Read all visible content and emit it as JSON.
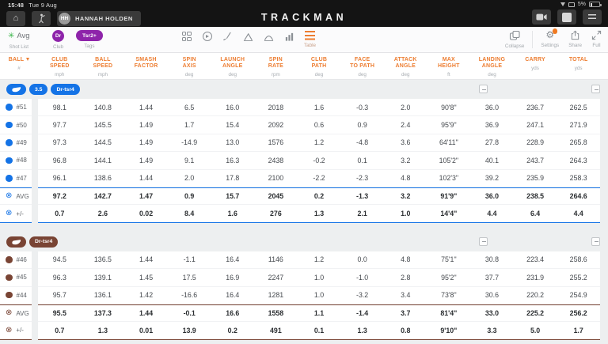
{
  "status_bar": {
    "time": "15:48",
    "date": "Tue 9 Aug",
    "battery_percent": "5%"
  },
  "app_bar": {
    "logo": "TRACKMAN",
    "user_initials": "HH",
    "user_name": "HANNAH HOLDEN"
  },
  "toolbar": {
    "shot_list_label": "Avg",
    "shot_list_caption": "Shot List",
    "club_value": "Dr",
    "club_caption": "Club",
    "tag_value": "Tsr2+",
    "tags_caption": "Tags",
    "table_caption": "Table",
    "collapse_caption": "Collapse",
    "settings_caption": "Settings",
    "share_caption": "Share",
    "full_caption": "Full"
  },
  "colors": {
    "header_accent": "#ED7D31",
    "group1": "#1473E6",
    "group2": "#794434",
    "tag_purple": "#8E24AA",
    "avg_green": "#3AB54A"
  },
  "table": {
    "ball_column": {
      "label": "BALL",
      "unit": "#"
    },
    "columns": [
      {
        "lines": [
          "CLUB",
          "SPEED"
        ],
        "unit": "mph"
      },
      {
        "lines": [
          "BALL",
          "SPEED"
        ],
        "unit": "mph"
      },
      {
        "lines": [
          "SMASH",
          "FACTOR"
        ],
        "unit": ""
      },
      {
        "lines": [
          "SPIN",
          "AXIS"
        ],
        "unit": "deg"
      },
      {
        "lines": [
          "LAUNCH",
          "ANGLE"
        ],
        "unit": "deg"
      },
      {
        "lines": [
          "SPIN",
          "RATE"
        ],
        "unit": "rpm"
      },
      {
        "lines": [
          "CLUB",
          "PATH"
        ],
        "unit": "deg"
      },
      {
        "lines": [
          "FACE",
          "TO PATH"
        ],
        "unit": "deg"
      },
      {
        "lines": [
          "ATTACK",
          "ANGLE"
        ],
        "unit": "deg"
      },
      {
        "lines": [
          "MAX",
          "HEIGHT"
        ],
        "unit": "ft"
      },
      {
        "lines": [
          "LANDING",
          "ANGLE"
        ],
        "unit": "deg"
      },
      {
        "lines": [
          "CARRY"
        ],
        "unit": "yds"
      },
      {
        "lines": [
          "TOTAL"
        ],
        "unit": "yds"
      }
    ],
    "groups": [
      {
        "color": "#1473E6",
        "tags": [
          "3.5",
          "Dr-tsr4"
        ],
        "rows": [
          {
            "id": "#51",
            "values": [
              "98.1",
              "140.8",
              "1.44",
              "6.5",
              "16.0",
              "2018",
              "1.6",
              "-0.3",
              "2.0",
              "90'8\"",
              "36.0",
              "236.7",
              "262.5"
            ]
          },
          {
            "id": "#50",
            "values": [
              "97.7",
              "145.5",
              "1.49",
              "1.7",
              "15.4",
              "2092",
              "0.6",
              "0.9",
              "2.4",
              "95'9\"",
              "36.9",
              "247.1",
              "271.9"
            ]
          },
          {
            "id": "#49",
            "values": [
              "97.3",
              "144.5",
              "1.49",
              "-14.9",
              "13.0",
              "1576",
              "1.2",
              "-4.8",
              "3.6",
              "64'11\"",
              "27.8",
              "228.9",
              "265.8"
            ]
          },
          {
            "id": "#48",
            "values": [
              "96.8",
              "144.1",
              "1.49",
              "9.1",
              "16.3",
              "2438",
              "-0.2",
              "0.1",
              "3.2",
              "105'2\"",
              "40.1",
              "243.7",
              "264.3"
            ]
          },
          {
            "id": "#47",
            "values": [
              "96.1",
              "138.6",
              "1.44",
              "2.0",
              "17.8",
              "2100",
              "-2.2",
              "-2.3",
              "4.8",
              "102'3\"",
              "39.2",
              "235.9",
              "258.3"
            ]
          }
        ],
        "avg": {
          "id": "AVG",
          "values": [
            "97.2",
            "142.7",
            "1.47",
            "0.9",
            "15.7",
            "2045",
            "0.2",
            "-1.3",
            "3.2",
            "91'9\"",
            "36.0",
            "238.5",
            "264.6"
          ]
        },
        "dev": {
          "id": "+/-",
          "values": [
            "0.7",
            "2.6",
            "0.02",
            "8.4",
            "1.6",
            "276",
            "1.3",
            "2.1",
            "1.0",
            "14'4\"",
            "4.4",
            "6.4",
            "4.4"
          ]
        }
      },
      {
        "color": "#794434",
        "tags": [
          "Dr-tsr4"
        ],
        "rows": [
          {
            "id": "#46",
            "values": [
              "94.5",
              "136.5",
              "1.44",
              "-1.1",
              "16.4",
              "1146",
              "1.2",
              "0.0",
              "4.8",
              "75'1\"",
              "30.8",
              "223.4",
              "258.6"
            ]
          },
          {
            "id": "#45",
            "values": [
              "96.3",
              "139.1",
              "1.45",
              "17.5",
              "16.9",
              "2247",
              "1.0",
              "-1.0",
              "2.8",
              "95'2\"",
              "37.7",
              "231.9",
              "255.2"
            ]
          },
          {
            "id": "#44",
            "values": [
              "95.7",
              "136.1",
              "1.42",
              "-16.6",
              "16.4",
              "1281",
              "1.0",
              "-3.2",
              "3.4",
              "73'8\"",
              "30.6",
              "220.2",
              "254.9"
            ]
          }
        ],
        "avg": {
          "id": "AVG",
          "values": [
            "95.5",
            "137.3",
            "1.44",
            "-0.1",
            "16.6",
            "1558",
            "1.1",
            "-1.4",
            "3.7",
            "81'4\"",
            "33.0",
            "225.2",
            "256.2"
          ]
        },
        "dev": {
          "id": "+/-",
          "values": [
            "0.7",
            "1.3",
            "0.01",
            "13.9",
            "0.2",
            "491",
            "0.1",
            "1.3",
            "0.8",
            "9'10\"",
            "3.3",
            "5.0",
            "1.7"
          ]
        }
      }
    ]
  }
}
